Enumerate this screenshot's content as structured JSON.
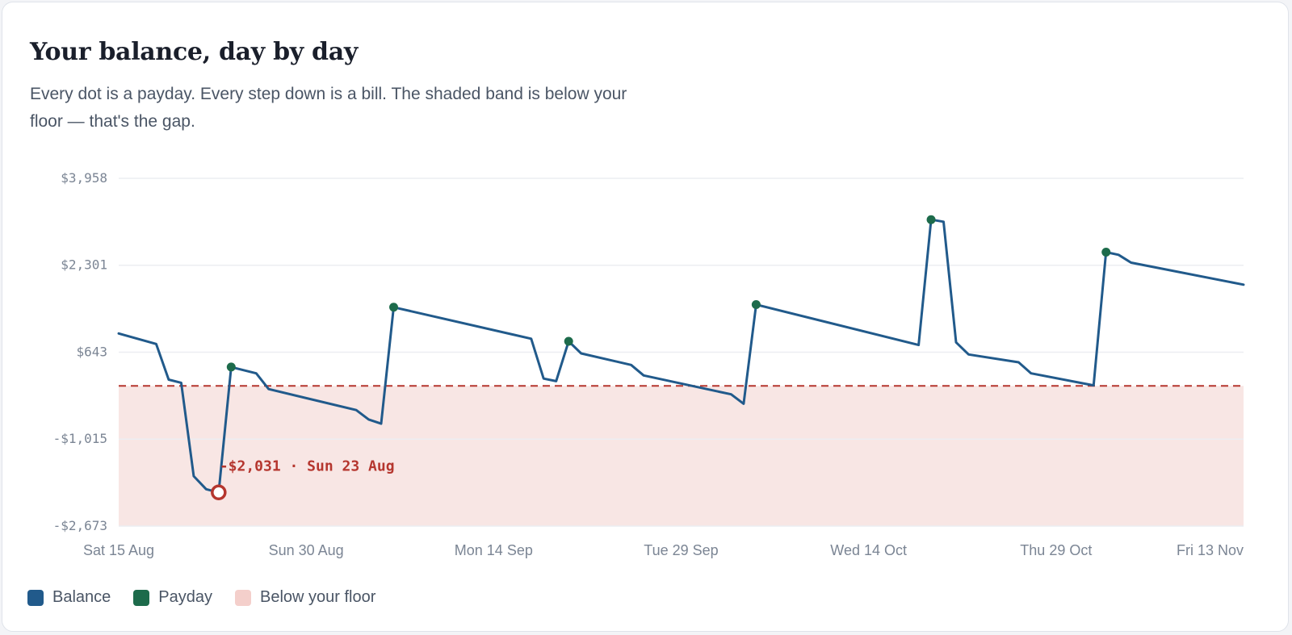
{
  "header": {
    "title": "Your balance, day by day",
    "subtitle": "Every dot is a payday. Every step down is a bill. The shaded band is below your floor — that's the gap."
  },
  "colors": {
    "balance": "#215a8b",
    "payday": "#1d6b4b",
    "floor_band": "#f8e6e4",
    "floor_line": "#b5362e",
    "low_point": "#b5362e",
    "gridline": "#eceef2"
  },
  "chart_data": {
    "type": "line",
    "title": "Your balance, day by day",
    "x_start": "2026-08-15",
    "y_ticks": [
      3958,
      2301,
      643,
      -1015,
      -2673
    ],
    "y_tick_labels": [
      "$3,958",
      "$2,301",
      "$643",
      "-$1,015",
      "-$2,673"
    ],
    "ylim": [
      -2673,
      3958
    ],
    "x_ticks": [
      {
        "label": "Sat 15 Aug",
        "date": "2026-08-15"
      },
      {
        "label": "Sun 30 Aug",
        "date": "2026-08-30"
      },
      {
        "label": "Mon 14 Sep",
        "date": "2026-09-14"
      },
      {
        "label": "Tue 29 Sep",
        "date": "2026-09-29"
      },
      {
        "label": "Wed 14 Oct",
        "date": "2026-10-14"
      },
      {
        "label": "Thu 29 Oct",
        "date": "2026-10-29"
      },
      {
        "label": "Fri 13 Nov",
        "date": "2026-11-13"
      }
    ],
    "floor": 0,
    "grid": true,
    "series": [
      {
        "name": "Balance",
        "points": [
          [
            "2026-08-15",
            1000
          ],
          [
            "2026-08-18",
            800
          ],
          [
            "2026-08-19",
            120
          ],
          [
            "2026-08-20",
            60
          ],
          [
            "2026-08-21",
            -1720
          ],
          [
            "2026-08-22",
            -1970
          ],
          [
            "2026-08-23",
            -2031
          ],
          [
            "2026-08-24",
            360
          ],
          [
            "2026-08-26",
            240
          ],
          [
            "2026-08-27",
            -60
          ],
          [
            "2026-09-03",
            -460
          ],
          [
            "2026-09-04",
            -640
          ],
          [
            "2026-09-05",
            -720
          ],
          [
            "2026-09-06",
            1500
          ],
          [
            "2026-09-17",
            900
          ],
          [
            "2026-09-18",
            140
          ],
          [
            "2026-09-19",
            90
          ],
          [
            "2026-09-20",
            850
          ],
          [
            "2026-09-21",
            620
          ],
          [
            "2026-09-25",
            400
          ],
          [
            "2026-09-26",
            200
          ],
          [
            "2026-10-03",
            -160
          ],
          [
            "2026-10-04",
            -340
          ],
          [
            "2026-10-05",
            1550
          ],
          [
            "2026-10-18",
            780
          ],
          [
            "2026-10-19",
            3170
          ],
          [
            "2026-10-20",
            3130
          ],
          [
            "2026-10-21",
            830
          ],
          [
            "2026-10-22",
            600
          ],
          [
            "2026-10-26",
            450
          ],
          [
            "2026-10-27",
            240
          ],
          [
            "2026-11-01",
            10
          ],
          [
            "2026-11-02",
            2550
          ],
          [
            "2026-11-03",
            2500
          ],
          [
            "2026-11-04",
            2350
          ],
          [
            "2026-11-13",
            1930
          ]
        ]
      }
    ],
    "paydays": [
      [
        "2026-08-24",
        360
      ],
      [
        "2026-09-06",
        1500
      ],
      [
        "2026-09-20",
        850
      ],
      [
        "2026-10-05",
        1550
      ],
      [
        "2026-10-19",
        3170
      ],
      [
        "2026-11-02",
        2550
      ]
    ],
    "low_point": {
      "date": "2026-08-23",
      "value": -2031,
      "label": "-$2,031 · Sun 23 Aug"
    }
  },
  "legend": [
    {
      "label": "Balance",
      "color_key": "balance"
    },
    {
      "label": "Payday",
      "color_key": "payday"
    },
    {
      "label": "Below your floor",
      "color_key": "floor_band"
    }
  ]
}
